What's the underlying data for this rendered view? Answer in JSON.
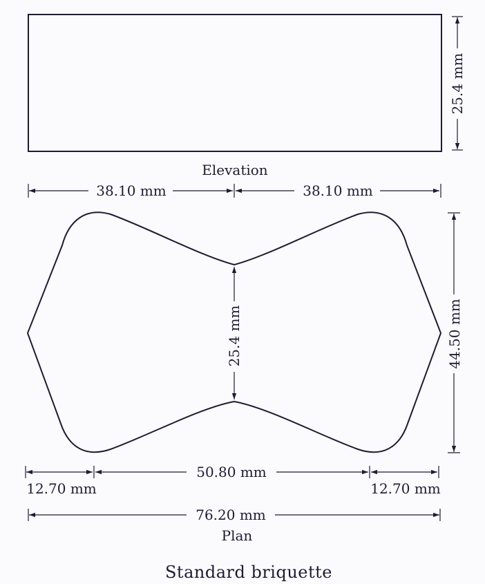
{
  "elevation": {
    "label": "Elevation",
    "height_dim": "25.4 mm",
    "left_half_dim": "38.10 mm",
    "right_half_dim": "38.10 mm"
  },
  "plan": {
    "label": "Plan",
    "waist_dim": "25.4 mm",
    "height_dim": "44.50 mm",
    "left_end_dim": "12.70 mm",
    "middle_dim": "50.80 mm",
    "right_end_dim": "12.70 mm",
    "total_dim": "76.20 mm"
  },
  "caption": "Standard briquette",
  "colors": {
    "ink": "#1d1b33",
    "paper": "#fbfbfd"
  }
}
